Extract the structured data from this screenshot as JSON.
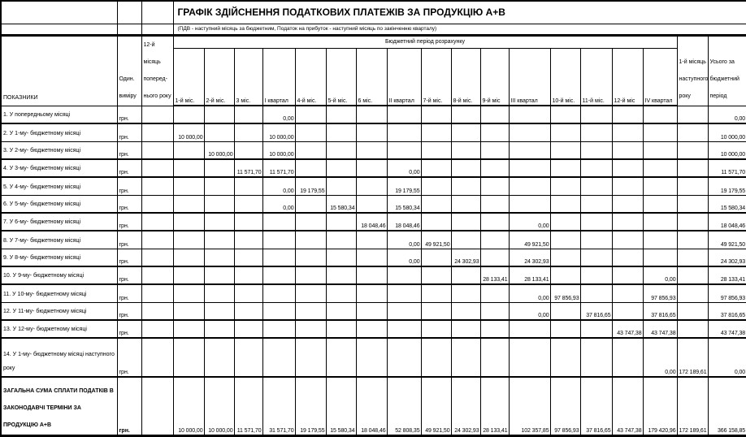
{
  "title": "ГРАФІК ЗДІЙСНЕННЯ ПОДАТКОВИХ ПЛАТЕЖІВ ЗА ПРОДУКЦІЮ А+В",
  "subtitle": "(ПДВ - наступний місяць за бюджетним, Податок на прибуток - наступний місяць по закінченню кварталу)",
  "table": {
    "col_headers": {
      "indicators": "ПОКАЗНИКИ",
      "unit": "Один. виміру",
      "prev_year_month": "12-й місяць поперед- нього року",
      "budget_period_span": "Бюджетний період розрахунку",
      "periods": [
        "1-й міс.",
        "2-й міс.",
        "3 міс.",
        "І квартал",
        "4-й міс.",
        "5-й міс.",
        "6 міс.",
        "ІІ квартал",
        "7-й міс.",
        "8-й міс.",
        "9-й міс",
        "ІІІ квартал",
        "10-й міс.",
        "11-й міс.",
        "12-й міс",
        "IV квартал"
      ],
      "next_year_month": "1-й місяць наступного року",
      "total": "Усього за бюджетний період"
    },
    "rows": [
      {
        "label": "1. У попередньому місяці",
        "unit": "грн.",
        "values": [
          "",
          "",
          "",
          "",
          "0,00",
          "",
          "",
          "",
          "",
          "",
          "",
          "",
          "",
          "",
          "",
          "",
          "",
          "",
          "0,00"
        ]
      },
      {
        "label": "2. У 1-му- бюджетному місяці",
        "unit": "грн.",
        "values": [
          "",
          "10 000,00",
          "",
          "",
          "10 000,00",
          "",
          "",
          "",
          "",
          "",
          "",
          "",
          "",
          "",
          "",
          "",
          "",
          "",
          "10 000,00"
        ]
      },
      {
        "label": "3. У 2-му- бюджетному місяці",
        "unit": "грн.",
        "values": [
          "",
          "",
          "10 000,00",
          "",
          "10 000,00",
          "",
          "",
          "",
          "",
          "",
          "",
          "",
          "",
          "",
          "",
          "",
          "",
          "",
          "10 000,00"
        ]
      },
      {
        "label": "4. У 3-му- бюджетному місяці",
        "unit": "грн.",
        "values": [
          "",
          "",
          "",
          "11 571,70",
          "11 571,70",
          "",
          "",
          "",
          "0,00",
          "",
          "",
          "",
          "",
          "",
          "",
          "",
          "",
          "",
          "11 571,70"
        ]
      },
      {
        "label": "5. У 4-му- бюджетному місяці",
        "unit": "грн.",
        "values": [
          "",
          "",
          "",
          "",
          "0,00",
          "19 179,55",
          "",
          "",
          "19 179,55",
          "",
          "",
          "",
          "",
          "",
          "",
          "",
          "",
          "",
          "19 179,55"
        ]
      },
      {
        "label": "6. У 5-му- бюджетному місяці",
        "unit": "грн.",
        "values": [
          "",
          "",
          "",
          "",
          "0,00",
          "",
          "15 580,34",
          "",
          "15 580,34",
          "",
          "",
          "",
          "",
          "",
          "",
          "",
          "",
          "",
          "15 580,34"
        ]
      },
      {
        "label": "7. У 6-му- бюджетному місяці",
        "unit": "грн.",
        "values": [
          "",
          "",
          "",
          "",
          "",
          "",
          "",
          "18 048,46",
          "18 048,46",
          "",
          "",
          "",
          "0,00",
          "",
          "",
          "",
          "",
          "",
          "18 048,46"
        ]
      },
      {
        "label": "8. У 7-му- бюджетному місяці",
        "unit": "грн.",
        "values": [
          "",
          "",
          "",
          "",
          "",
          "",
          "",
          "",
          "0,00",
          "49 921,50",
          "",
          "",
          "49 921,50",
          "",
          "",
          "",
          "",
          "",
          "49 921,50"
        ]
      },
      {
        "label": "9. У 8-му- бюджетному місяці",
        "unit": "грн.",
        "values": [
          "",
          "",
          "",
          "",
          "",
          "",
          "",
          "",
          "0,00",
          "",
          "24 302,93",
          "",
          "24 302,93",
          "",
          "",
          "",
          "",
          "",
          "24 302,93"
        ]
      },
      {
        "label": "10. У 9-му- бюджетному місяці",
        "unit": "грн.",
        "values": [
          "",
          "",
          "",
          "",
          "",
          "",
          "",
          "",
          "",
          "",
          "",
          "28 133,41",
          "28 133,41",
          "",
          "",
          "",
          "0,00",
          "",
          "28 133,41"
        ]
      },
      {
        "label": "11. У 10-му- бюджетному місяці",
        "unit": "грн.",
        "values": [
          "",
          "",
          "",
          "",
          "",
          "",
          "",
          "",
          "",
          "",
          "",
          "",
          "0,00",
          "97 856,93",
          "",
          "",
          "97 856,93",
          "",
          "97 856,93"
        ]
      },
      {
        "label": "12. У 11-му- бюджетному місяці",
        "unit": "грн.",
        "values": [
          "",
          "",
          "",
          "",
          "",
          "",
          "",
          "",
          "",
          "",
          "",
          "",
          "0,00",
          "",
          "37 816,65",
          "",
          "37 816,65",
          "",
          "37 816,65"
        ]
      },
      {
        "label": "13. У 12-му- бюджетному місяці",
        "unit": "грн.",
        "values": [
          "",
          "",
          "",
          "",
          "",
          "",
          "",
          "",
          "",
          "",
          "",
          "",
          "",
          "",
          "",
          "43 747,38",
          "43 747,38",
          "",
          "43 747,38"
        ]
      },
      {
        "label": "14. У 1-му- бюджетному місяці наступного року",
        "unit": "грн.",
        "values": [
          "",
          "",
          "",
          "",
          "",
          "",
          "",
          "",
          "",
          "",
          "",
          "",
          "",
          "",
          "",
          "",
          "0,00",
          "172 189,61",
          "0,00"
        ]
      }
    ],
    "total_row": {
      "label": "ЗАГАЛЬНА СУМА СПЛАТИ ПОДАТКІВ В ЗАКОНОДАВЧІ ТЕРМІНИ ЗА ПРОДУКЦІЮ А+В",
      "unit": "грн.",
      "values": [
        "",
        "10 000,00",
        "10 000,00",
        "11 571,70",
        "31 571,70",
        "19 179,55",
        "15 580,34",
        "18 048,46",
        "52 808,35",
        "49 921,50",
        "24 302,93",
        "28 133,41",
        "102 357,85",
        "97 856,93",
        "37 816,65",
        "43 747,38",
        "179 420,96",
        "172 189,61",
        "366 158,85"
      ]
    }
  }
}
